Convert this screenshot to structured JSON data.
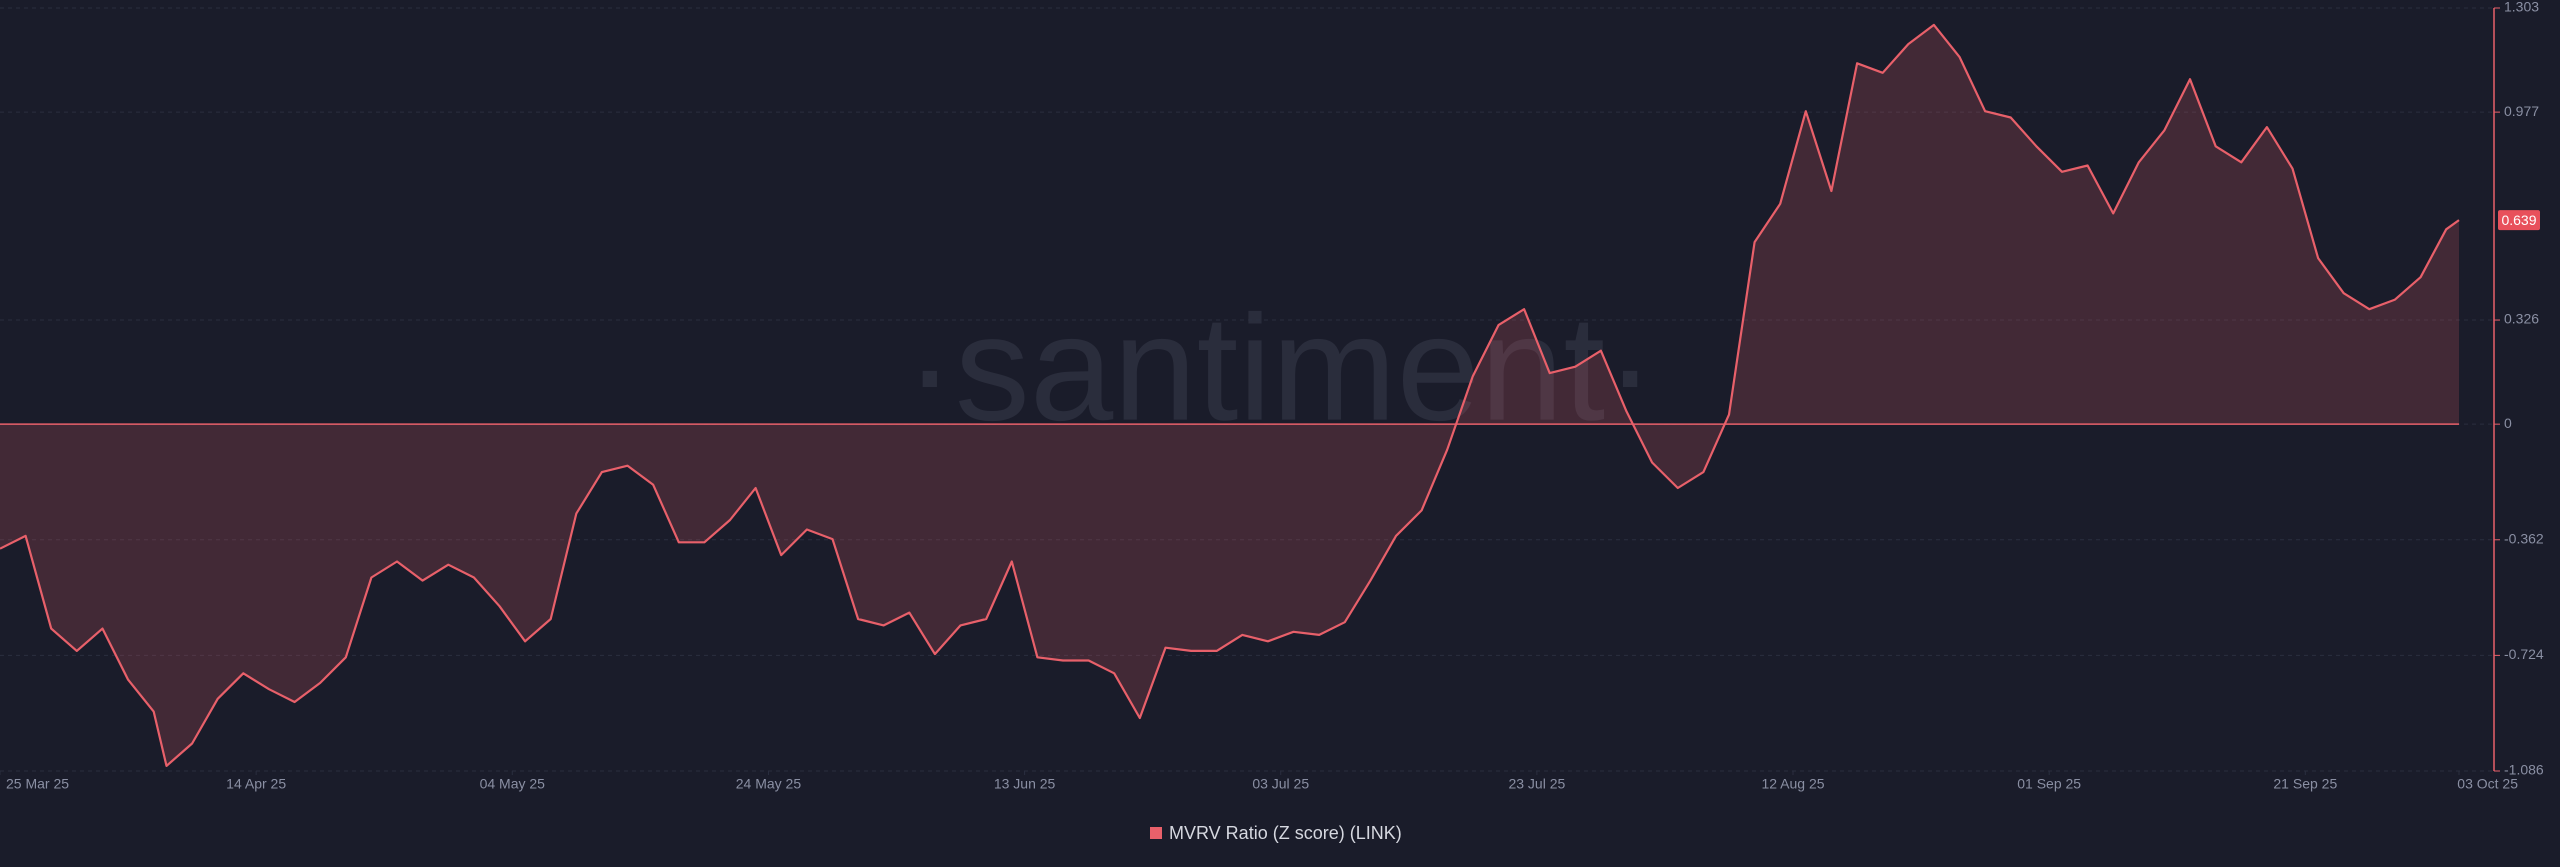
{
  "chart_data": {
    "type": "area",
    "watermark": "·santiment·",
    "x": [
      "2025-03-25",
      "2025-03-27",
      "2025-03-29",
      "2025-03-31",
      "2025-04-02",
      "2025-04-04",
      "2025-04-06",
      "2025-04-07",
      "2025-04-09",
      "2025-04-11",
      "2025-04-13",
      "2025-04-15",
      "2025-04-17",
      "2025-04-19",
      "2025-04-21",
      "2025-04-23",
      "2025-04-25",
      "2025-04-27",
      "2025-04-29",
      "2025-05-01",
      "2025-05-03",
      "2025-05-05",
      "2025-05-07",
      "2025-05-09",
      "2025-05-11",
      "2025-05-13",
      "2025-05-15",
      "2025-05-17",
      "2025-05-19",
      "2025-05-21",
      "2025-05-23",
      "2025-05-25",
      "2025-05-27",
      "2025-05-29",
      "2025-05-31",
      "2025-06-02",
      "2025-06-04",
      "2025-06-06",
      "2025-06-08",
      "2025-06-10",
      "2025-06-12",
      "2025-06-14",
      "2025-06-16",
      "2025-06-18",
      "2025-06-20",
      "2025-06-22",
      "2025-06-24",
      "2025-06-26",
      "2025-06-28",
      "2025-06-30",
      "2025-07-02",
      "2025-07-04",
      "2025-07-06",
      "2025-07-08",
      "2025-07-10",
      "2025-07-12",
      "2025-07-14",
      "2025-07-16",
      "2025-07-18",
      "2025-07-20",
      "2025-07-22",
      "2025-07-24",
      "2025-07-26",
      "2025-07-28",
      "2025-07-30",
      "2025-08-01",
      "2025-08-03",
      "2025-08-05",
      "2025-08-07",
      "2025-08-09",
      "2025-08-11",
      "2025-08-13",
      "2025-08-15",
      "2025-08-17",
      "2025-08-19",
      "2025-08-21",
      "2025-08-23",
      "2025-08-25",
      "2025-08-27",
      "2025-08-29",
      "2025-08-31",
      "2025-09-02",
      "2025-09-04",
      "2025-09-06",
      "2025-09-08",
      "2025-09-10",
      "2025-09-12",
      "2025-09-14",
      "2025-09-16",
      "2025-09-18",
      "2025-09-20",
      "2025-09-22",
      "2025-09-24",
      "2025-09-26",
      "2025-09-28",
      "2025-09-30",
      "2025-10-02",
      "2025-10-03"
    ],
    "series": [
      {
        "name": "MVRV Ratio (Z score) (LINK)",
        "color": "#e8606a",
        "values": [
          -0.39,
          -0.35,
          -0.64,
          -0.71,
          -0.64,
          -0.8,
          -0.9,
          -1.07,
          -1.0,
          -0.86,
          -0.78,
          -0.83,
          -0.87,
          -0.81,
          -0.73,
          -0.48,
          -0.43,
          -0.49,
          -0.44,
          -0.48,
          -0.57,
          -0.68,
          -0.61,
          -0.28,
          -0.15,
          -0.13,
          -0.19,
          -0.37,
          -0.37,
          -0.3,
          -0.2,
          -0.41,
          -0.33,
          -0.36,
          -0.61,
          -0.63,
          -0.59,
          -0.72,
          -0.63,
          -0.61,
          -0.43,
          -0.73,
          -0.74,
          -0.74,
          -0.78,
          -0.92,
          -0.7,
          -0.71,
          -0.71,
          -0.66,
          -0.68,
          -0.65,
          -0.66,
          -0.62,
          -0.49,
          -0.35,
          -0.27,
          -0.08,
          0.15,
          0.31,
          0.36,
          0.16,
          0.18,
          0.23,
          0.04,
          -0.12,
          -0.2,
          -0.15,
          0.03,
          0.57,
          0.69,
          0.98,
          0.73,
          1.13,
          1.1,
          1.19,
          1.25,
          1.15,
          0.98,
          0.96,
          0.87,
          0.79,
          0.81,
          0.66,
          0.82,
          0.92,
          1.08,
          0.87,
          0.82,
          0.93,
          0.8,
          0.52,
          0.41,
          0.36,
          0.39,
          0.46,
          0.61,
          0.639
        ]
      }
    ],
    "xlim": [
      "2025-03-25",
      "2025-10-03"
    ],
    "xticks": [
      {
        "value": "2025-03-25",
        "label": "25 Mar 25"
      },
      {
        "value": "2025-04-14",
        "label": "14 Apr 25"
      },
      {
        "value": "2025-05-04",
        "label": "04 May 25"
      },
      {
        "value": "2025-05-24",
        "label": "24 May 25"
      },
      {
        "value": "2025-06-13",
        "label": "13 Jun 25"
      },
      {
        "value": "2025-07-03",
        "label": "03 Jul 25"
      },
      {
        "value": "2025-07-23",
        "label": "23 Jul 25"
      },
      {
        "value": "2025-08-12",
        "label": "12 Aug 25"
      },
      {
        "value": "2025-09-01",
        "label": "01 Sep 25"
      },
      {
        "value": "2025-09-21",
        "label": "21 Sep 25"
      },
      {
        "value": "2025-10-03",
        "label": "03 Oct 25"
      }
    ],
    "ylim": [
      -1.086,
      1.303
    ],
    "yticks": [
      -1.086,
      -0.724,
      -0.362,
      0,
      0.326,
      0.977,
      1.303
    ],
    "grid": true,
    "legend": "bottom"
  }
}
